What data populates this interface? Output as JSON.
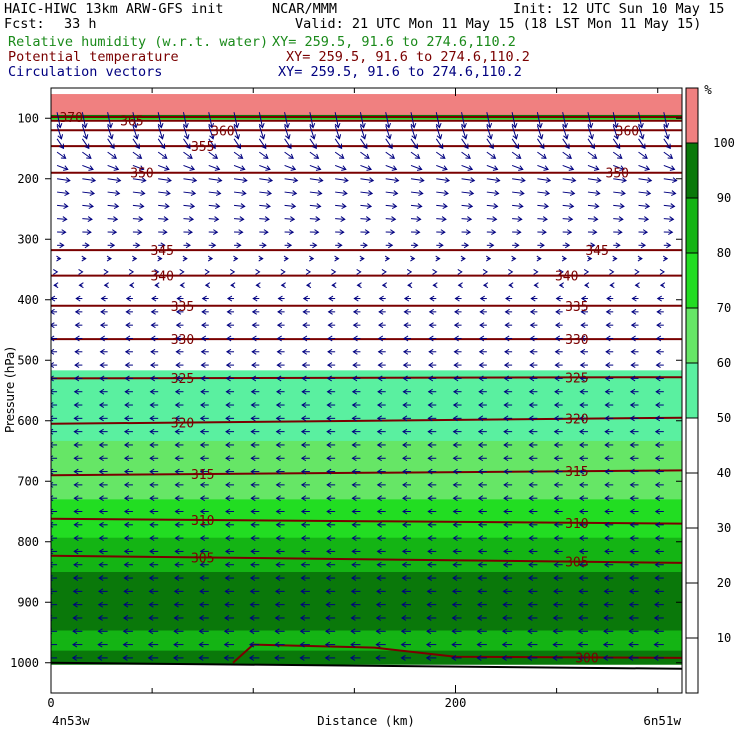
{
  "header": {
    "model": "HAIC-HIWC 13km ARW-GFS init",
    "org": "NCAR/MMM",
    "init": "Init: 12 UTC Sun 10 May 15",
    "fcst_label": "Fcst:",
    "fcst_value": "33 h",
    "valid": "Valid: 21 UTC Mon 11 May 15 (18 LST Mon 11 May 15)",
    "fields": [
      {
        "name": "Relative humidity (w.r.t. water)",
        "xy": "XY= 259.5, 91.6 to 274.6,110.2",
        "color": "#1a8a1a"
      },
      {
        "name": "Potential temperature",
        "xy": "XY= 259.5, 91.6 to 274.6,110.2",
        "color": "#7a0000"
      },
      {
        "name": "Circulation vectors",
        "xy": "XY= 259.5, 91.6 to 274.6,110.2",
        "color": "#000080"
      }
    ]
  },
  "chart_data": {
    "type": "heatmap",
    "title": "",
    "xlabel": "Distance (km)",
    "ylabel": "Pressure (hPa)",
    "x_ticks": [
      0,
      200
    ],
    "xlim": [
      0,
      312
    ],
    "y_ticks": [
      100,
      200,
      300,
      400,
      500,
      600,
      700,
      800,
      900,
      1000
    ],
    "ylim": [
      1050,
      50
    ],
    "x_endpoint_labels": {
      "left": "4n53w",
      "right": "6n51w"
    },
    "colorbar": {
      "unit": "%",
      "ticks": [
        10,
        20,
        30,
        40,
        50,
        60,
        70,
        80,
        90,
        100
      ],
      "levels": [
        {
          "from": 0,
          "to": 50,
          "color": "#ffffff"
        },
        {
          "from": 50,
          "to": 60,
          "color": "#5af0a0"
        },
        {
          "from": 60,
          "to": 70,
          "color": "#66e666"
        },
        {
          "from": 70,
          "to": 80,
          "color": "#22dd22"
        },
        {
          "from": 80,
          "to": 90,
          "color": "#14b414"
        },
        {
          "from": 90,
          "to": 100,
          "color": "#0a780a"
        },
        {
          "from": 100,
          "to": 110,
          "color": "#f08080"
        }
      ]
    },
    "rh_profile": [
      {
        "p": 60,
        "rh": 105
      },
      {
        "p": 93,
        "rh": 105
      },
      {
        "p": 96,
        "rh": 95
      },
      {
        "p": 100,
        "rh": 75
      },
      {
        "p": 104,
        "rh": 55
      },
      {
        "p": 110,
        "rh": 30
      },
      {
        "p": 400,
        "rh": 30
      },
      {
        "p": 540,
        "rh": 55
      },
      {
        "p": 620,
        "rh": 58
      },
      {
        "p": 700,
        "rh": 68
      },
      {
        "p": 760,
        "rh": 72
      },
      {
        "p": 800,
        "rh": 82
      },
      {
        "p": 850,
        "rh": 90
      },
      {
        "p": 940,
        "rh": 92
      },
      {
        "p": 960,
        "rh": 85
      },
      {
        "p": 1000,
        "rh": 95
      },
      {
        "p": 1050,
        "rh": 95
      }
    ],
    "theta_contours": [
      {
        "value": 370,
        "label_x": [
          10
        ],
        "points": [
          [
            0,
            98
          ],
          [
            312,
            98
          ]
        ]
      },
      {
        "value": 365,
        "label_x": [
          40
        ],
        "points": [
          [
            0,
            104
          ],
          [
            312,
            104
          ]
        ]
      },
      {
        "value": 360,
        "label_x": [
          85,
          285
        ],
        "points": [
          [
            0,
            120
          ],
          [
            312,
            120
          ]
        ]
      },
      {
        "value": 355,
        "label_x": [
          75
        ],
        "points": [
          [
            0,
            146
          ],
          [
            312,
            146
          ]
        ]
      },
      {
        "value": 350,
        "label_x": [
          45,
          280
        ],
        "points": [
          [
            0,
            190
          ],
          [
            312,
            190
          ]
        ]
      },
      {
        "value": 345,
        "label_x": [
          55,
          270
        ],
        "points": [
          [
            0,
            318
          ],
          [
            312,
            318
          ]
        ]
      },
      {
        "value": 340,
        "label_x": [
          55,
          255
        ],
        "points": [
          [
            0,
            360
          ],
          [
            312,
            360
          ]
        ]
      },
      {
        "value": 335,
        "label_x": [
          65,
          260
        ],
        "points": [
          [
            0,
            410
          ],
          [
            312,
            410
          ]
        ]
      },
      {
        "value": 330,
        "label_x": [
          65,
          260
        ],
        "points": [
          [
            0,
            465
          ],
          [
            312,
            465
          ]
        ]
      },
      {
        "value": 325,
        "label_x": [
          65,
          260
        ],
        "points": [
          [
            0,
            530
          ],
          [
            312,
            528
          ]
        ]
      },
      {
        "value": 320,
        "label_x": [
          65,
          260
        ],
        "points": [
          [
            0,
            605
          ],
          [
            312,
            595
          ]
        ]
      },
      {
        "value": 315,
        "label_x": [
          75,
          260
        ],
        "points": [
          [
            0,
            690
          ],
          [
            312,
            682
          ]
        ]
      },
      {
        "value": 310,
        "label_x": [
          75,
          260
        ],
        "points": [
          [
            0,
            762
          ],
          [
            312,
            770
          ]
        ]
      },
      {
        "value": 305,
        "label_x": [
          75,
          260
        ],
        "points": [
          [
            0,
            823
          ],
          [
            312,
            835
          ]
        ]
      },
      {
        "value": 300,
        "label_x": [
          265
        ],
        "points": [
          [
            90,
            1000
          ],
          [
            100,
            970
          ],
          [
            160,
            975
          ],
          [
            200,
            990
          ],
          [
            312,
            992
          ]
        ]
      }
    ],
    "vectors": {
      "rows": [
        {
          "p": 100,
          "u": 0.2,
          "w": -1.6
        },
        {
          "p": 150,
          "u": 0.5,
          "w": -0.7
        },
        {
          "p": 200,
          "u": 0.8,
          "w": -0.2
        },
        {
          "p": 300,
          "u": 0.5,
          "w": 0
        },
        {
          "p": 400,
          "u": -0.4,
          "w": 0
        },
        {
          "p": 600,
          "u": -0.5,
          "w": 0
        },
        {
          "p": 800,
          "u": -0.5,
          "w": 0
        },
        {
          "p": 1000,
          "u": -0.6,
          "w": 0
        }
      ],
      "top_p": 90,
      "bottom_p": 1000,
      "row_step_p": 22,
      "col_step_km": 12.5
    },
    "terrain_p": 1000
  }
}
